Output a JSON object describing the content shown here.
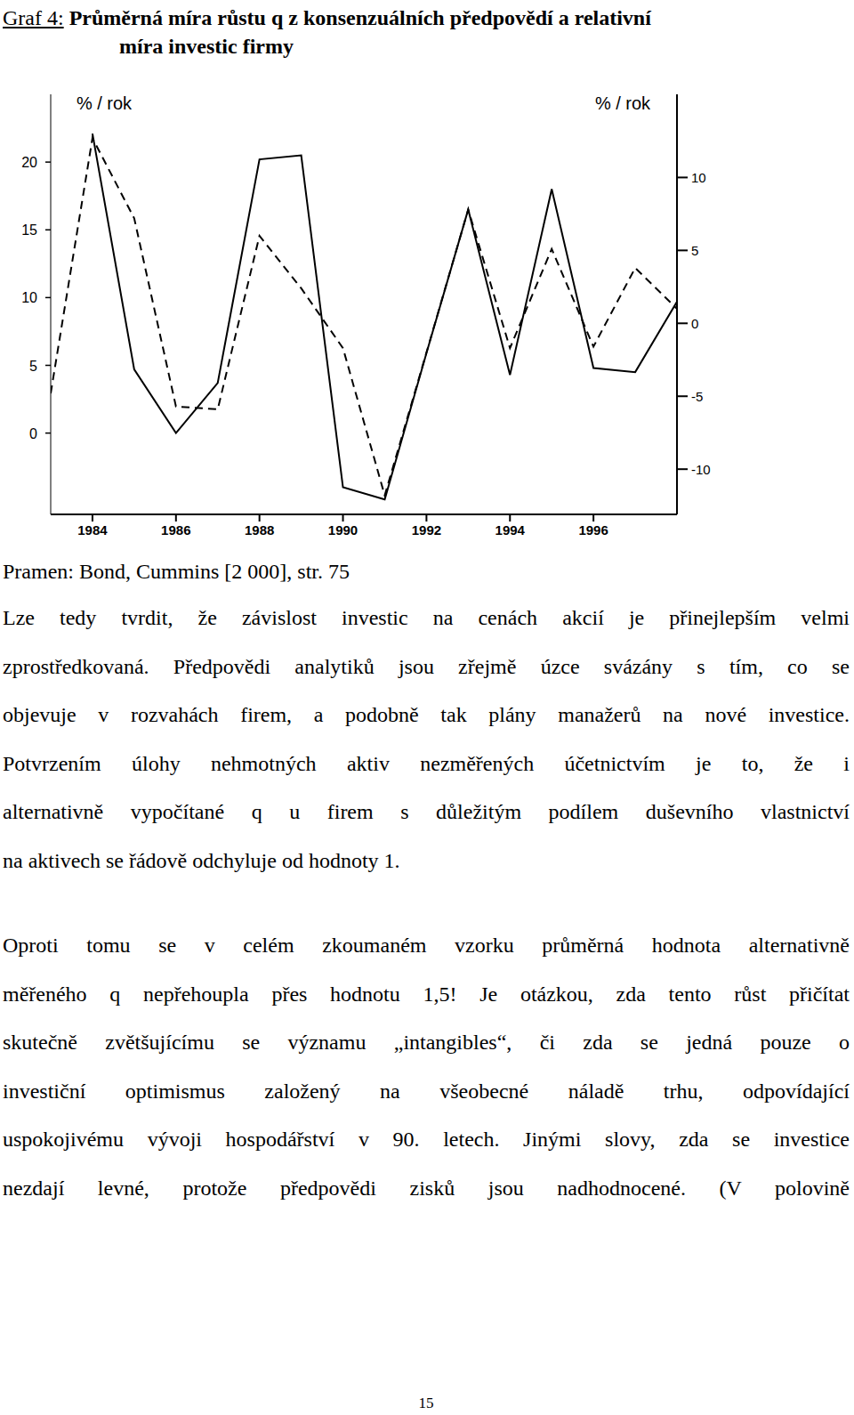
{
  "figure": {
    "label": "Graf 4:",
    "title_lines": [
      "Průměrná míra růstu q z konsenzuálních předpovědí a relativní",
      "míra investic firmy"
    ]
  },
  "chart_data": {
    "type": "line",
    "y_label": "% / rok",
    "y2_label": "% / rok",
    "x": [
      1983,
      1984,
      1985,
      1986,
      1987,
      1988,
      1989,
      1990,
      1991,
      1992,
      1993,
      1994,
      1995,
      1996,
      1997,
      1998
    ],
    "xlim": [
      1983,
      1998
    ],
    "xticks": [
      1984,
      1986,
      1988,
      1990,
      1992,
      1994,
      1996
    ],
    "ylim": [
      -6,
      25
    ],
    "yticks": [
      0,
      5,
      10,
      15,
      20
    ],
    "y2lim": [
      -13.1,
      15.7
    ],
    "y2ticks": [
      -10,
      -5,
      0,
      5,
      10
    ],
    "grid": false,
    "series": [
      {
        "color": "#000000",
        "line_style": "solid",
        "values": [
          null,
          22.1,
          4.7,
          0,
          3.7,
          20.2,
          20.5,
          -4.0,
          -4.9,
          5.9,
          16.5,
          4.3,
          18.0,
          4.8,
          4.5,
          9.7
        ]
      },
      {
        "color": "#000000",
        "line_style": "dashed",
        "axis": "y2",
        "values": [
          -4.8,
          12.7,
          7.2,
          -5.7,
          -5.9,
          6.0,
          2.4,
          -1.7,
          -11.8,
          -2.0,
          7.8,
          -1.7,
          5.1,
          -1.6,
          3.8,
          1.0
        ]
      }
    ]
  },
  "source": "Pramen: Bond, Cummins [2 000], str. 75",
  "paragraphs": [
    {
      "lines": [
        "Lze tedy tvrdit, že závislost investic na cenách akcií je přinejlepším velmi",
        "zprostředkovaná. Předpovědi analytiků jsou zřejmě úzce svázány s tím, co se",
        "objevuje v rozvahách firem, a podobně tak plány manažerů na nové investice.",
        "Potvrzením úlohy nehmotných aktiv nezměřených účetnictvím je to, že i",
        "alternativně vypočítané q u firem s důležitým podílem duševního vlastnictví",
        "na aktivech se řádově odchyluje od hodnoty 1."
      ]
    },
    {
      "lines": [
        "Oproti tomu se v celém zkoumaném vzorku průměrná hodnota alternativně",
        "měřeného q nepřehoupla přes hodnotu 1,5! Je otázkou, zda tento růst přičítat",
        "skutečně  zvětšujícímu se významu „intangibles“, či zda se jedná pouze o",
        "investiční optimismus založený na všeobecné náladě trhu, odpovídající",
        "uspokojivému vývoji hospodářství v 90. letech. Jinými slovy, zda se investice",
        "nezdají levné, protože předpovědi zisků jsou nadhodnocené. (V polovině"
      ]
    }
  ],
  "page_number": "15"
}
